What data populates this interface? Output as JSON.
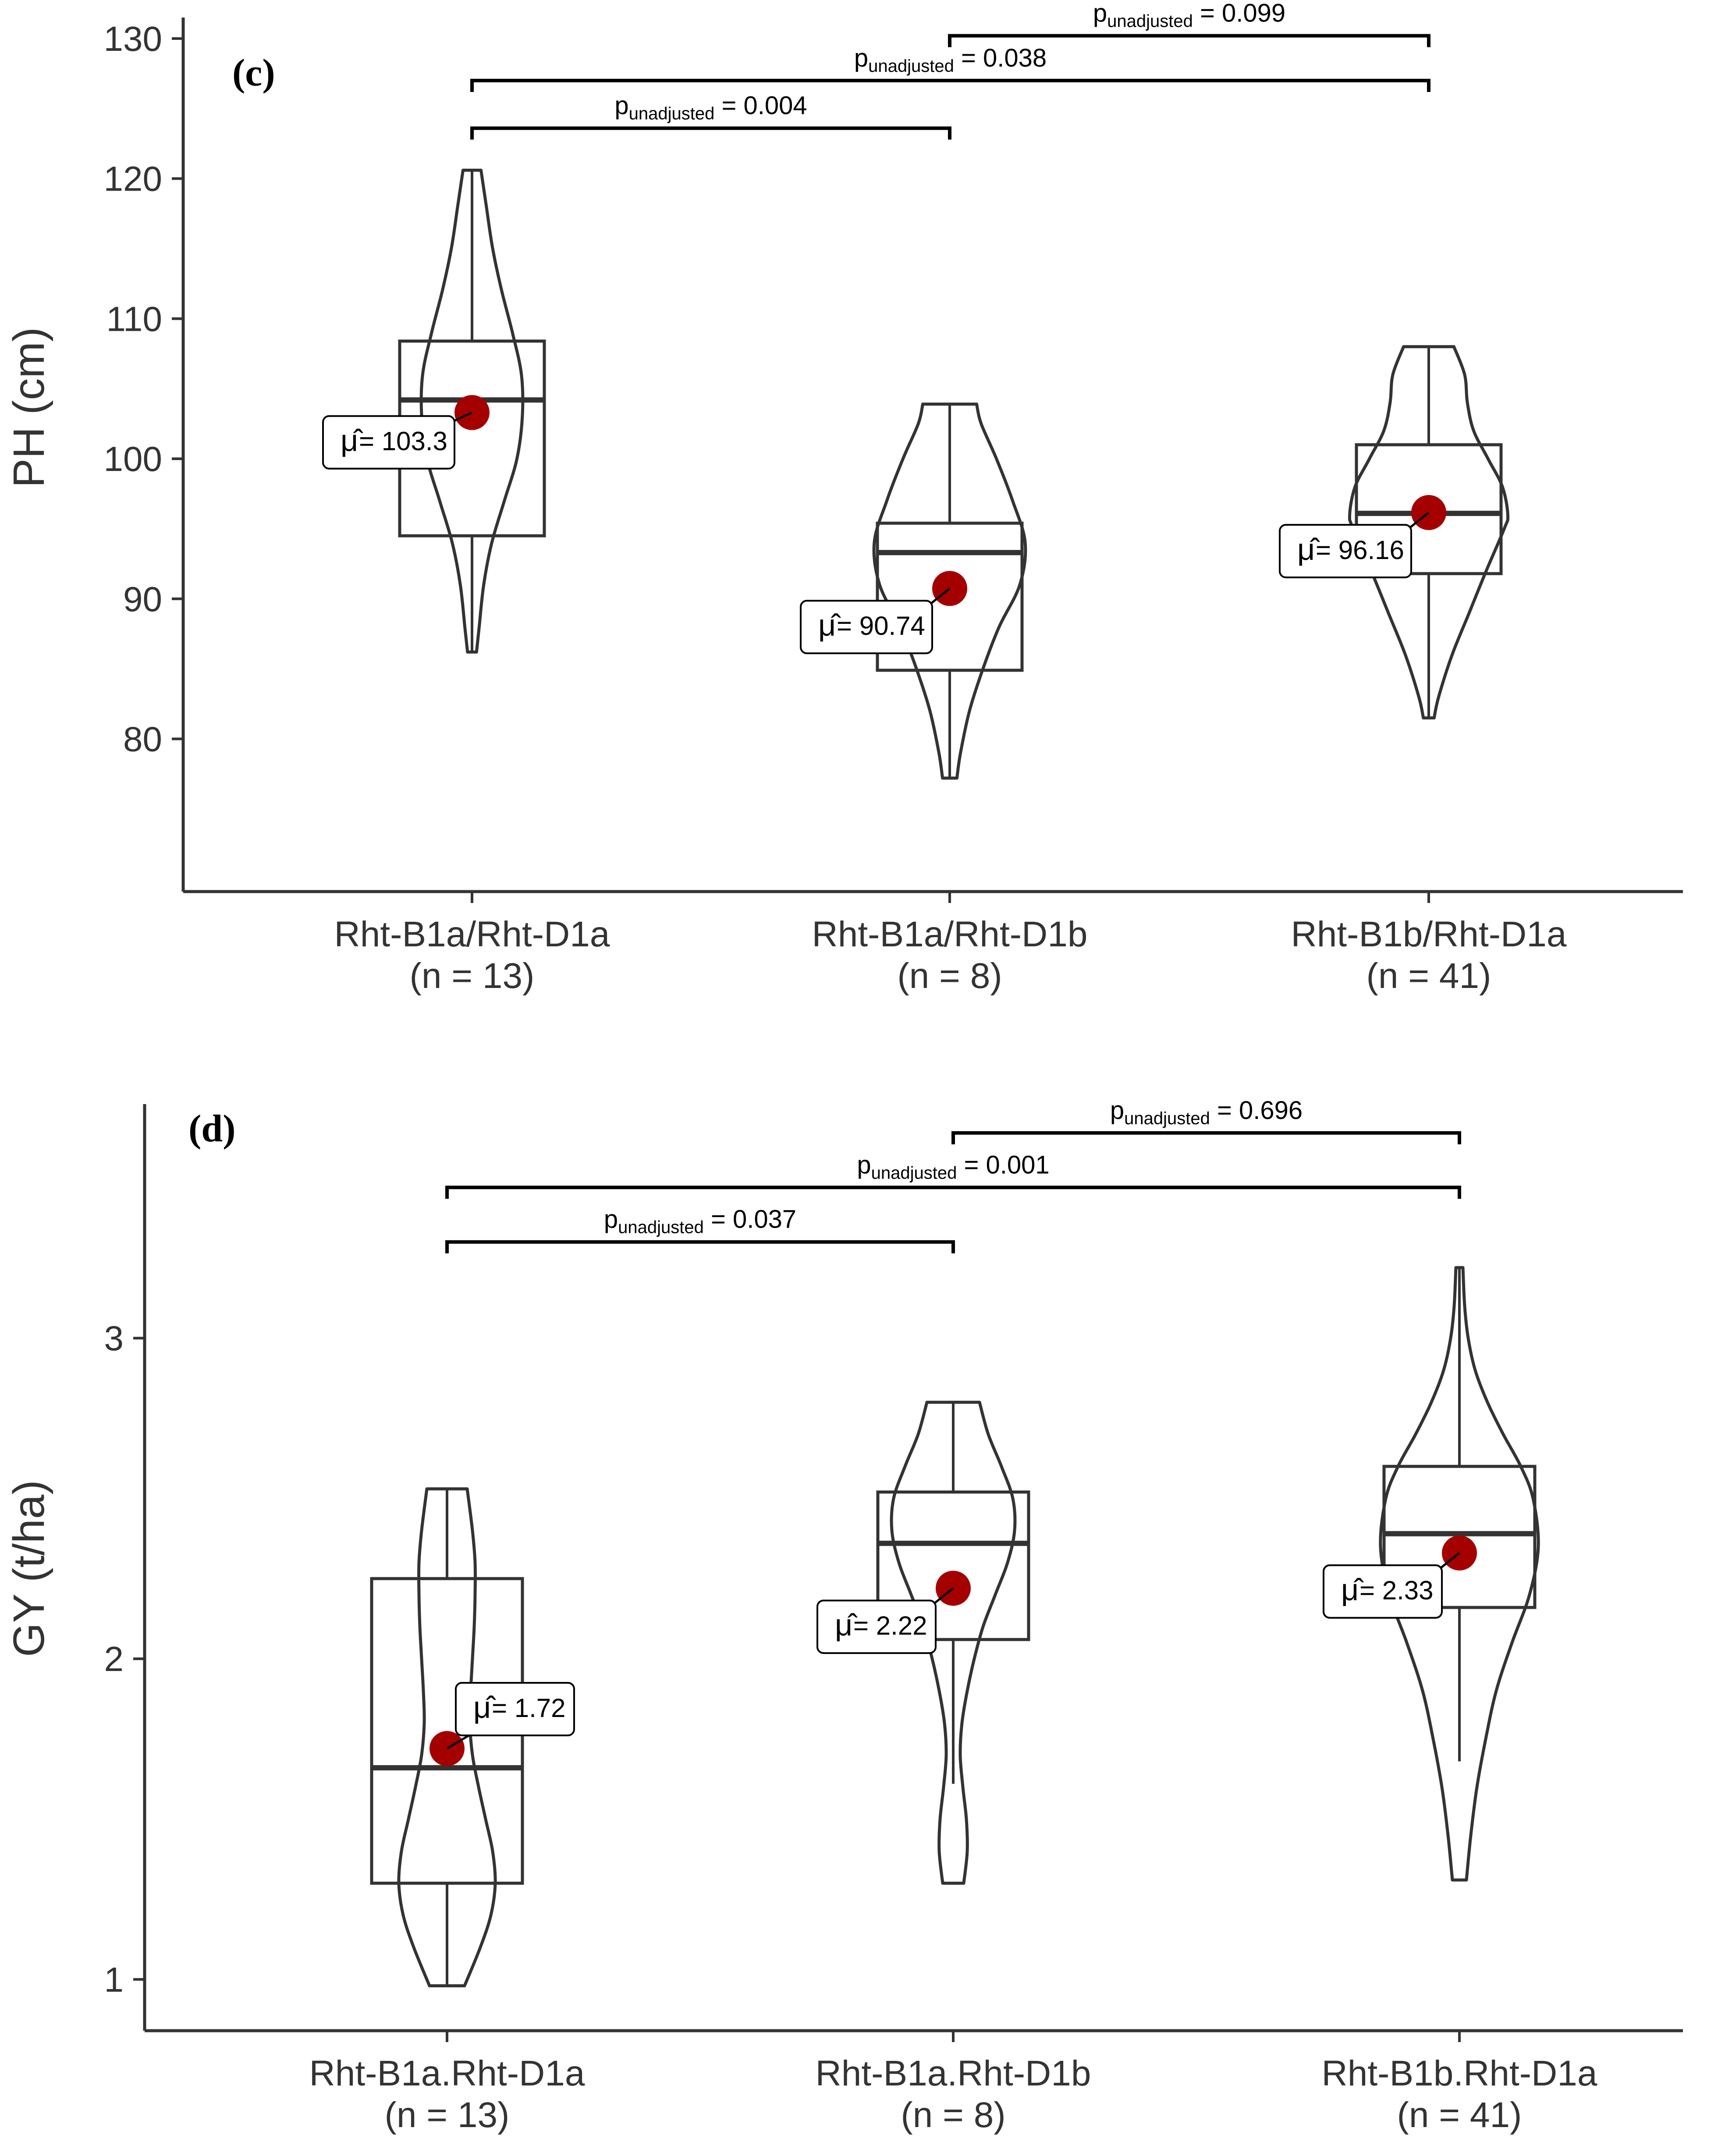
{
  "colors": {
    "mean_point": "#a50000",
    "outline": "#333333",
    "axis": "#333333",
    "bracket": "#000000",
    "background": "#ffffff"
  },
  "chart_data": [
    {
      "type": "violin-box",
      "panel_label": "(c)",
      "ylabel": "PH (cm)",
      "ylim": [
        69.1,
        131.5
      ],
      "yticks": [
        80,
        90,
        100,
        110,
        120,
        130
      ],
      "grid": false,
      "categories": [
        "Rht-B1a/Rht-D1a",
        "Rht-B1a/Rht-D1b",
        "Rht-B1b/Rht-D1a"
      ],
      "n_labels": [
        "(n = 13)",
        "(n = 8)",
        "(n = 41)"
      ],
      "groups": [
        {
          "name": "Rht-B1a/Rht-D1a",
          "min": 86.2,
          "q1": 94.5,
          "median": 104.2,
          "q3": 108.4,
          "max": 120.6,
          "mean": 103.3,
          "mean_label": "= 103.3",
          "violin": [
            [
              86.2,
              0.05
            ],
            [
              88,
              0.08
            ],
            [
              91,
              0.13
            ],
            [
              94,
              0.22
            ],
            [
              97,
              0.36
            ],
            [
              100,
              0.5
            ],
            [
              103,
              0.56
            ],
            [
              106,
              0.55
            ],
            [
              109,
              0.45
            ],
            [
              112,
              0.33
            ],
            [
              115,
              0.23
            ],
            [
              118,
              0.16
            ],
            [
              120.6,
              0.1
            ]
          ]
        },
        {
          "name": "Rht-B1a/Rht-D1b",
          "min": 77.2,
          "q1": 84.9,
          "median": 93.3,
          "q3": 95.4,
          "max": 103.9,
          "mean": 90.74,
          "mean_label": "= 90.74",
          "violin": [
            [
              77.2,
              0.08
            ],
            [
              79,
              0.12
            ],
            [
              82,
              0.22
            ],
            [
              85,
              0.37
            ],
            [
              88,
              0.55
            ],
            [
              91,
              0.78
            ],
            [
              94,
              0.84
            ],
            [
              97,
              0.7
            ],
            [
              100,
              0.52
            ],
            [
              102.5,
              0.35
            ],
            [
              103.9,
              0.3
            ]
          ]
        },
        {
          "name": "Rht-B1b/Rht-D1a",
          "min": 81.5,
          "q1": 91.8,
          "median": 96.1,
          "q3": 101.0,
          "max": 108.0,
          "mean": 96.16,
          "mean_label": "= 96.16",
          "violin": [
            [
              81.5,
              0.06
            ],
            [
              83,
              0.11
            ],
            [
              86,
              0.26
            ],
            [
              89,
              0.45
            ],
            [
              92,
              0.64
            ],
            [
              95,
              0.84
            ],
            [
              96,
              0.88
            ],
            [
              98,
              0.82
            ],
            [
              100,
              0.66
            ],
            [
              102,
              0.5
            ],
            [
              104,
              0.43
            ],
            [
              106,
              0.4
            ],
            [
              108,
              0.28
            ]
          ]
        }
      ],
      "comparisons": [
        {
          "from": "Rht-B1a/Rht-D1a",
          "to": "Rht-B1a/Rht-D1b",
          "p_prefix": "p",
          "p_sub": "unadjusted",
          "p_value": "= 0.004",
          "y": 123.6
        },
        {
          "from": "Rht-B1a/Rht-D1a",
          "to": "Rht-B1b/Rht-D1a",
          "p_prefix": "p",
          "p_sub": "unadjusted",
          "p_value": "= 0.038",
          "y": 127.0
        },
        {
          "from": "Rht-B1a/Rht-D1b",
          "to": "Rht-B1b/Rht-D1a",
          "p_prefix": "p",
          "p_sub": "unadjusted",
          "p_value": "= 0.099",
          "y": 130.2
        }
      ],
      "mean_symbol": "μ̂"
    },
    {
      "type": "violin-box",
      "panel_label": "(d)",
      "ylabel": "GY (t/ha)",
      "ylim": [
        0.84,
        3.73
      ],
      "yticks": [
        1,
        2,
        3
      ],
      "grid": false,
      "categories": [
        "Rht-B1a.Rht-D1a",
        "Rht-B1a.Rht-D1b",
        "Rht-B1b.Rht-D1a"
      ],
      "n_labels": [
        "(n = 13)",
        "(n = 8)",
        "(n = 41)"
      ],
      "groups": [
        {
          "name": "Rht-B1a.Rht-D1a",
          "min": 0.98,
          "q1": 1.3,
          "median": 1.66,
          "q3": 2.25,
          "max": 2.53,
          "mean": 1.72,
          "mean_label": "= 1.72",
          "violin": [
            [
              0.98,
              0.2
            ],
            [
              1.1,
              0.38
            ],
            [
              1.2,
              0.5
            ],
            [
              1.3,
              0.55
            ],
            [
              1.4,
              0.52
            ],
            [
              1.5,
              0.44
            ],
            [
              1.6,
              0.36
            ],
            [
              1.7,
              0.29
            ],
            [
              1.8,
              0.26
            ],
            [
              1.9,
              0.27
            ],
            [
              2.0,
              0.29
            ],
            [
              2.1,
              0.31
            ],
            [
              2.2,
              0.32
            ],
            [
              2.3,
              0.32
            ],
            [
              2.4,
              0.29
            ],
            [
              2.53,
              0.23
            ]
          ]
        },
        {
          "name": "Rht-B1a.Rht-D1b",
          "min": 1.61,
          "q1": 2.06,
          "median": 2.36,
          "q3": 2.52,
          "max": 2.8,
          "mean": 2.22,
          "mean_label": "= 2.22",
          "violin": [
            [
              1.3,
              0.12
            ],
            [
              1.4,
              0.16
            ],
            [
              1.5,
              0.15
            ],
            [
              1.6,
              0.11
            ],
            [
              1.7,
              0.08
            ],
            [
              1.8,
              0.1
            ],
            [
              1.9,
              0.16
            ],
            [
              2.0,
              0.24
            ],
            [
              2.1,
              0.34
            ],
            [
              2.2,
              0.48
            ],
            [
              2.3,
              0.62
            ],
            [
              2.4,
              0.7
            ],
            [
              2.5,
              0.68
            ],
            [
              2.6,
              0.55
            ],
            [
              2.7,
              0.4
            ],
            [
              2.8,
              0.3
            ]
          ]
        },
        {
          "name": "Rht-B1b.Rht-D1a",
          "min": 1.68,
          "q1": 2.16,
          "median": 2.39,
          "q3": 2.6,
          "max": 3.22,
          "mean": 2.33,
          "mean_label": "= 2.33",
          "violin": [
            [
              1.31,
              0.08
            ],
            [
              1.45,
              0.13
            ],
            [
              1.6,
              0.2
            ],
            [
              1.75,
              0.3
            ],
            [
              1.9,
              0.42
            ],
            [
              2.05,
              0.6
            ],
            [
              2.2,
              0.8
            ],
            [
              2.35,
              0.9
            ],
            [
              2.5,
              0.84
            ],
            [
              2.6,
              0.7
            ],
            [
              2.7,
              0.5
            ],
            [
              2.8,
              0.32
            ],
            [
              2.9,
              0.18
            ],
            [
              3.0,
              0.1
            ],
            [
              3.1,
              0.06
            ],
            [
              3.22,
              0.04
            ]
          ]
        }
      ],
      "comparisons": [
        {
          "from": "Rht-B1a.Rht-D1a",
          "to": "Rht-B1a.Rht-D1b",
          "p_prefix": "p",
          "p_sub": "unadjusted",
          "p_value": "= 0.037",
          "y": 3.3
        },
        {
          "from": "Rht-B1a.Rht-D1a",
          "to": "Rht-B1b.Rht-D1a",
          "p_prefix": "p",
          "p_sub": "unadjusted",
          "p_value": "= 0.001",
          "y": 3.47
        },
        {
          "from": "Rht-B1a.Rht-D1b",
          "to": "Rht-B1b.Rht-D1a",
          "p_prefix": "p",
          "p_sub": "unadjusted",
          "p_value": "= 0.696",
          "y": 3.64
        }
      ],
      "mean_symbol": "μ̂"
    }
  ]
}
